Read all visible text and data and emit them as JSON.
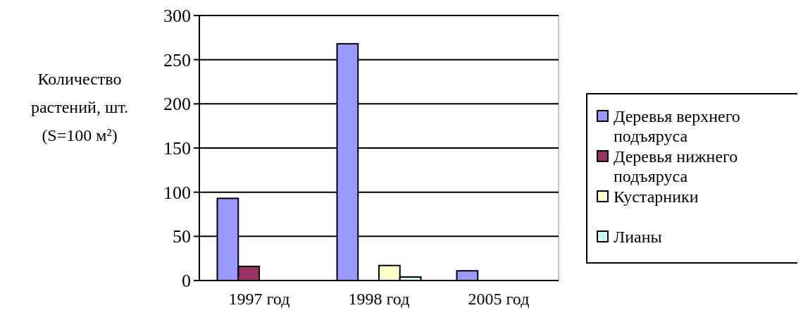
{
  "chart_data": {
    "type": "bar",
    "ylabel": "Количество растений, шт. (S=100 м²)",
    "categories": [
      "1997 год",
      "1998 год",
      "2005 год"
    ],
    "series": [
      {
        "name": "Деревья верхнего подъяруса",
        "color": "#9999ff",
        "values": [
          93,
          268,
          11
        ]
      },
      {
        "name": "Деревья нижнего подъяруса",
        "color": "#993366",
        "values": [
          16,
          0,
          0
        ]
      },
      {
        "name": "Кустарники",
        "color": "#ffffcc",
        "values": [
          0,
          17,
          0
        ]
      },
      {
        "name": "Лианы",
        "color": "#ccffff",
        "values": [
          0,
          4,
          0
        ]
      }
    ],
    "ylim": [
      0,
      300
    ],
    "yticks": [
      0,
      50,
      100,
      150,
      200,
      250,
      300
    ],
    "grid": "y",
    "legend": "right"
  }
}
